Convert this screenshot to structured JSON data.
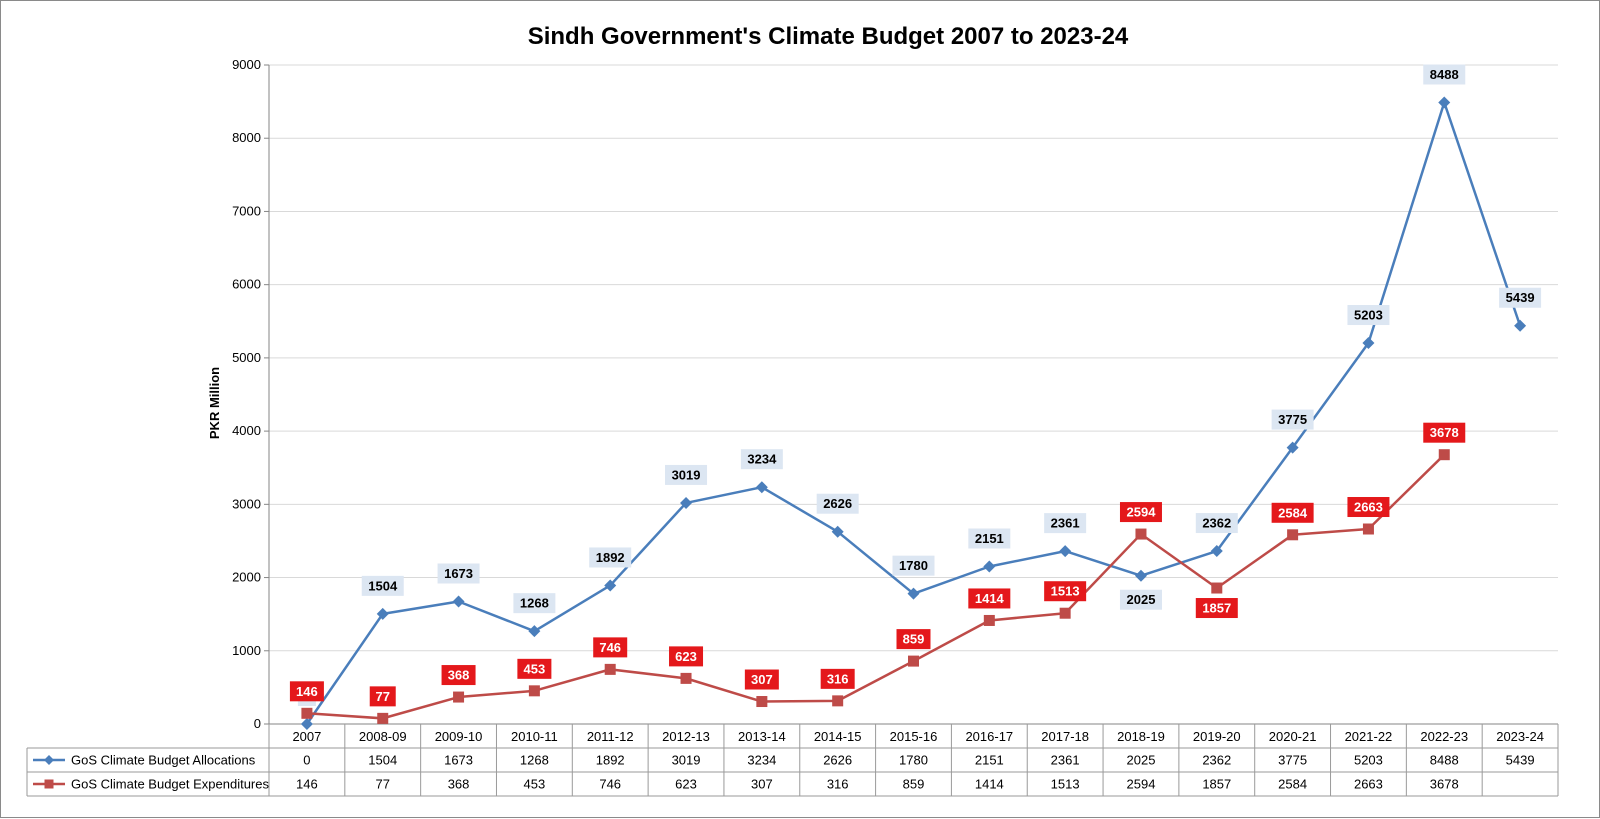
{
  "chart_data": {
    "type": "line",
    "title": "Sindh Government's Climate Budget 2007 to 2023-24",
    "ylabel": "PKR Million",
    "xlabel": "",
    "ylim": [
      0,
      9000
    ],
    "yticks": [
      0,
      1000,
      2000,
      3000,
      4000,
      5000,
      6000,
      7000,
      8000,
      9000
    ],
    "grid": true,
    "legend": "data-table",
    "categories": [
      "2007",
      "2008-09",
      "2009-10",
      "2010-11",
      "2011-12",
      "2012-13",
      "2013-14",
      "2014-15",
      "2015-16",
      "2016-17",
      "2017-18",
      "2018-19",
      "2019-20",
      "2020-21",
      "2021-22",
      "2022-23",
      "2023-24"
    ],
    "series": [
      {
        "name": "GoS Climate Budget Allocations",
        "color": "#4a7ebb",
        "marker": "diamond",
        "values": [
          0,
          1504,
          1673,
          1268,
          1892,
          3019,
          3234,
          2626,
          1780,
          2151,
          2361,
          2025,
          2362,
          3775,
          5203,
          8488,
          5439
        ]
      },
      {
        "name": "GoS Climate Budget Expenditures",
        "color": "#be4b48",
        "marker": "square",
        "values": [
          146,
          77,
          368,
          453,
          746,
          623,
          307,
          316,
          859,
          1414,
          1513,
          2594,
          1857,
          2584,
          2663,
          3678,
          null
        ]
      }
    ]
  },
  "colors": {
    "alloc_label_bg": "#dce6f2",
    "exp_label_bg": "#e4181b",
    "grid": "#d9d9d9",
    "axis": "#868686"
  }
}
